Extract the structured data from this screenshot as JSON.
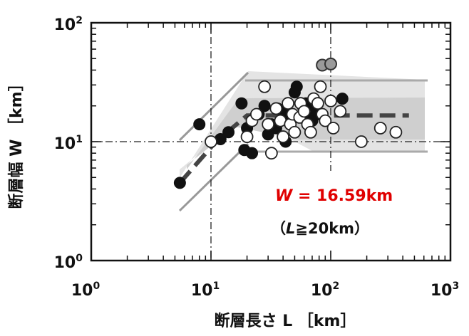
{
  "chart_data": {
    "type": "scatter",
    "x_scale": "log",
    "y_scale": "log",
    "xlim": [
      1,
      1000
    ],
    "ylim": [
      1,
      100
    ],
    "x_ticks": [
      {
        "base": "10",
        "exp": "0"
      },
      {
        "base": "10",
        "exp": "1"
      },
      {
        "base": "10",
        "exp": "2"
      },
      {
        "base": "10",
        "exp": "3"
      }
    ],
    "y_ticks": [
      {
        "base": "10",
        "exp": "0"
      },
      {
        "base": "10",
        "exp": "1"
      },
      {
        "base": "10",
        "exp": "2"
      }
    ],
    "xlabel": "断層長さ L ［km］",
    "ylabel": "断層幅 W ［km］",
    "annotation": {
      "var": "W",
      "equals": " = 16.59km",
      "condition_open": "（",
      "condition_var": "L",
      "condition_rest": "≧20km）",
      "var_color": "#e00000"
    },
    "fit_line": [
      [
        5.5,
        4.5
      ],
      [
        11,
        10.0
      ],
      [
        20,
        16.59
      ],
      [
        450,
        16.59
      ]
    ],
    "series": [
      {
        "marker": "filled-circle",
        "points": [
          [
            5.5,
            4.5
          ],
          [
            8,
            14
          ],
          [
            12,
            10.5
          ],
          [
            14,
            12
          ],
          [
            18,
            21
          ],
          [
            19,
            8.5
          ],
          [
            20,
            13
          ],
          [
            22,
            8
          ],
          [
            25,
            17
          ],
          [
            28,
            20
          ],
          [
            30,
            11.5
          ],
          [
            32,
            14
          ],
          [
            35,
            13
          ],
          [
            36,
            19
          ],
          [
            40,
            18
          ],
          [
            42,
            10
          ],
          [
            45,
            16
          ],
          [
            50,
            26
          ],
          [
            52,
            29
          ],
          [
            58,
            20
          ],
          [
            62,
            21
          ],
          [
            65,
            16
          ],
          [
            70,
            15
          ],
          [
            75,
            19
          ],
          [
            80,
            17
          ],
          [
            125,
            23
          ]
        ]
      },
      {
        "marker": "open-circle",
        "points": [
          [
            10,
            10
          ],
          [
            20,
            11
          ],
          [
            22,
            15
          ],
          [
            24,
            17
          ],
          [
            28,
            29
          ],
          [
            30,
            14
          ],
          [
            32,
            8
          ],
          [
            35,
            19
          ],
          [
            38,
            15
          ],
          [
            40,
            11
          ],
          [
            44,
            21
          ],
          [
            46,
            14
          ],
          [
            48,
            17
          ],
          [
            50,
            12
          ],
          [
            55,
            16
          ],
          [
            56,
            21
          ],
          [
            60,
            18
          ],
          [
            64,
            14
          ],
          [
            68,
            12
          ],
          [
            72,
            23
          ],
          [
            78,
            21
          ],
          [
            82,
            29
          ],
          [
            85,
            17
          ],
          [
            90,
            15
          ],
          [
            100,
            22
          ],
          [
            105,
            13
          ],
          [
            120,
            18
          ],
          [
            180,
            10
          ],
          [
            260,
            13
          ],
          [
            350,
            12
          ]
        ]
      },
      {
        "marker": "gray-circle",
        "points": [
          [
            85,
            44
          ],
          [
            100,
            45
          ]
        ]
      }
    ]
  }
}
